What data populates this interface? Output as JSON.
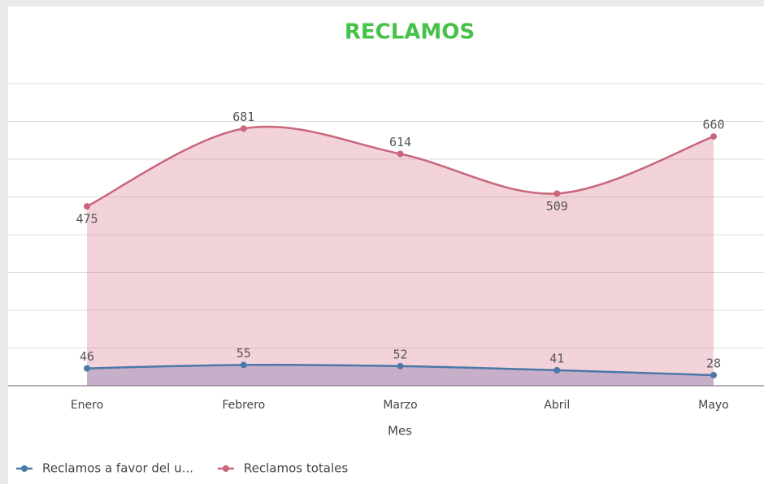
{
  "chart_data": {
    "type": "area",
    "title": "RECLAMOS",
    "x_label": "Mes",
    "categories": [
      "Enero",
      "Febrero",
      "Marzo",
      "Abril",
      "Mayo"
    ],
    "series": [
      {
        "name": "Reclamos a favor del u...",
        "color": "#4a78a8",
        "values": [
          46,
          55,
          52,
          41,
          28
        ]
      },
      {
        "name": "Reclamos totales",
        "color": "#c9667a",
        "values": [
          475,
          681,
          614,
          509,
          660
        ]
      }
    ],
    "ylim": [
      0,
      800
    ],
    "yticks": [
      0,
      100,
      200,
      300,
      400,
      500,
      600,
      700,
      800
    ],
    "grid": true
  }
}
